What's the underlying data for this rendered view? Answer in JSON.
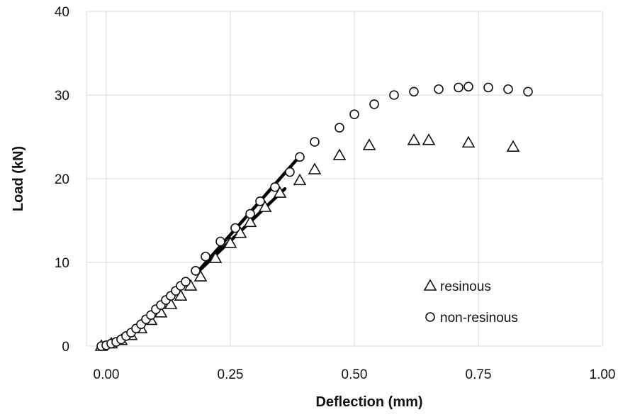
{
  "chart_data": {
    "type": "scatter",
    "title": "",
    "xlabel": "Deflection (mm)",
    "ylabel": "Load (kN)",
    "xlim": [
      -0.04,
      1.0
    ],
    "ylim": [
      0,
      40
    ],
    "xticks": [
      0.0,
      0.25,
      0.5,
      0.75,
      1.0
    ],
    "xtick_labels": [
      "0.00",
      "0.25",
      "0.50",
      "0.75",
      "1.00"
    ],
    "yticks": [
      0,
      10,
      20,
      30,
      40
    ],
    "ytick_labels": [
      "0",
      "10",
      "20",
      "30",
      "40"
    ],
    "grid": true,
    "legend_position": "bottom-right",
    "colors": {
      "marker": "#111111",
      "grid": "#d9d9d9",
      "fit_line": "#000000"
    },
    "series": [
      {
        "name": "resinous",
        "marker": "triangle",
        "x": [
          -0.01,
          0.01,
          0.03,
          0.05,
          0.07,
          0.09,
          0.11,
          0.13,
          0.15,
          0.17,
          0.19,
          0.22,
          0.25,
          0.27,
          0.29,
          0.32,
          0.35,
          0.39,
          0.42,
          0.47,
          0.53,
          0.62,
          0.65,
          0.73,
          0.82
        ],
        "y": [
          0,
          0.3,
          0.7,
          1.3,
          2.1,
          3.1,
          4.0,
          5.0,
          6.0,
          7.2,
          8.3,
          10.5,
          12.3,
          13.5,
          14.8,
          16.6,
          18.3,
          19.8,
          21.1,
          22.8,
          24.0,
          24.6,
          24.6,
          24.3,
          23.8
        ]
      },
      {
        "name": "non-resinous",
        "marker": "circle",
        "x": [
          -0.01,
          0.0,
          0.01,
          0.02,
          0.03,
          0.04,
          0.05,
          0.06,
          0.07,
          0.08,
          0.09,
          0.1,
          0.11,
          0.12,
          0.13,
          0.14,
          0.15,
          0.16,
          0.18,
          0.2,
          0.23,
          0.26,
          0.29,
          0.31,
          0.34,
          0.37,
          0.39,
          0.42,
          0.47,
          0.5,
          0.54,
          0.58,
          0.62,
          0.67,
          0.71,
          0.73,
          0.77,
          0.81,
          0.85
        ],
        "y": [
          0,
          0.1,
          0.3,
          0.5,
          0.8,
          1.2,
          1.6,
          2.1,
          2.6,
          3.2,
          3.7,
          4.4,
          4.9,
          5.5,
          6.0,
          6.6,
          7.2,
          7.7,
          9.0,
          10.7,
          12.5,
          14.1,
          15.8,
          17.3,
          19.0,
          20.8,
          22.6,
          24.4,
          26.1,
          27.7,
          28.9,
          30.0,
          30.4,
          30.7,
          30.9,
          31.0,
          30.9,
          30.7,
          30.4
        ]
      }
    ],
    "fit_lines": [
      {
        "x": [
          0.18,
          0.36
        ],
        "y": [
          8.6,
          18.8
        ]
      },
      {
        "x": [
          0.18,
          0.39
        ],
        "y": [
          8.6,
          22.7
        ]
      }
    ]
  }
}
